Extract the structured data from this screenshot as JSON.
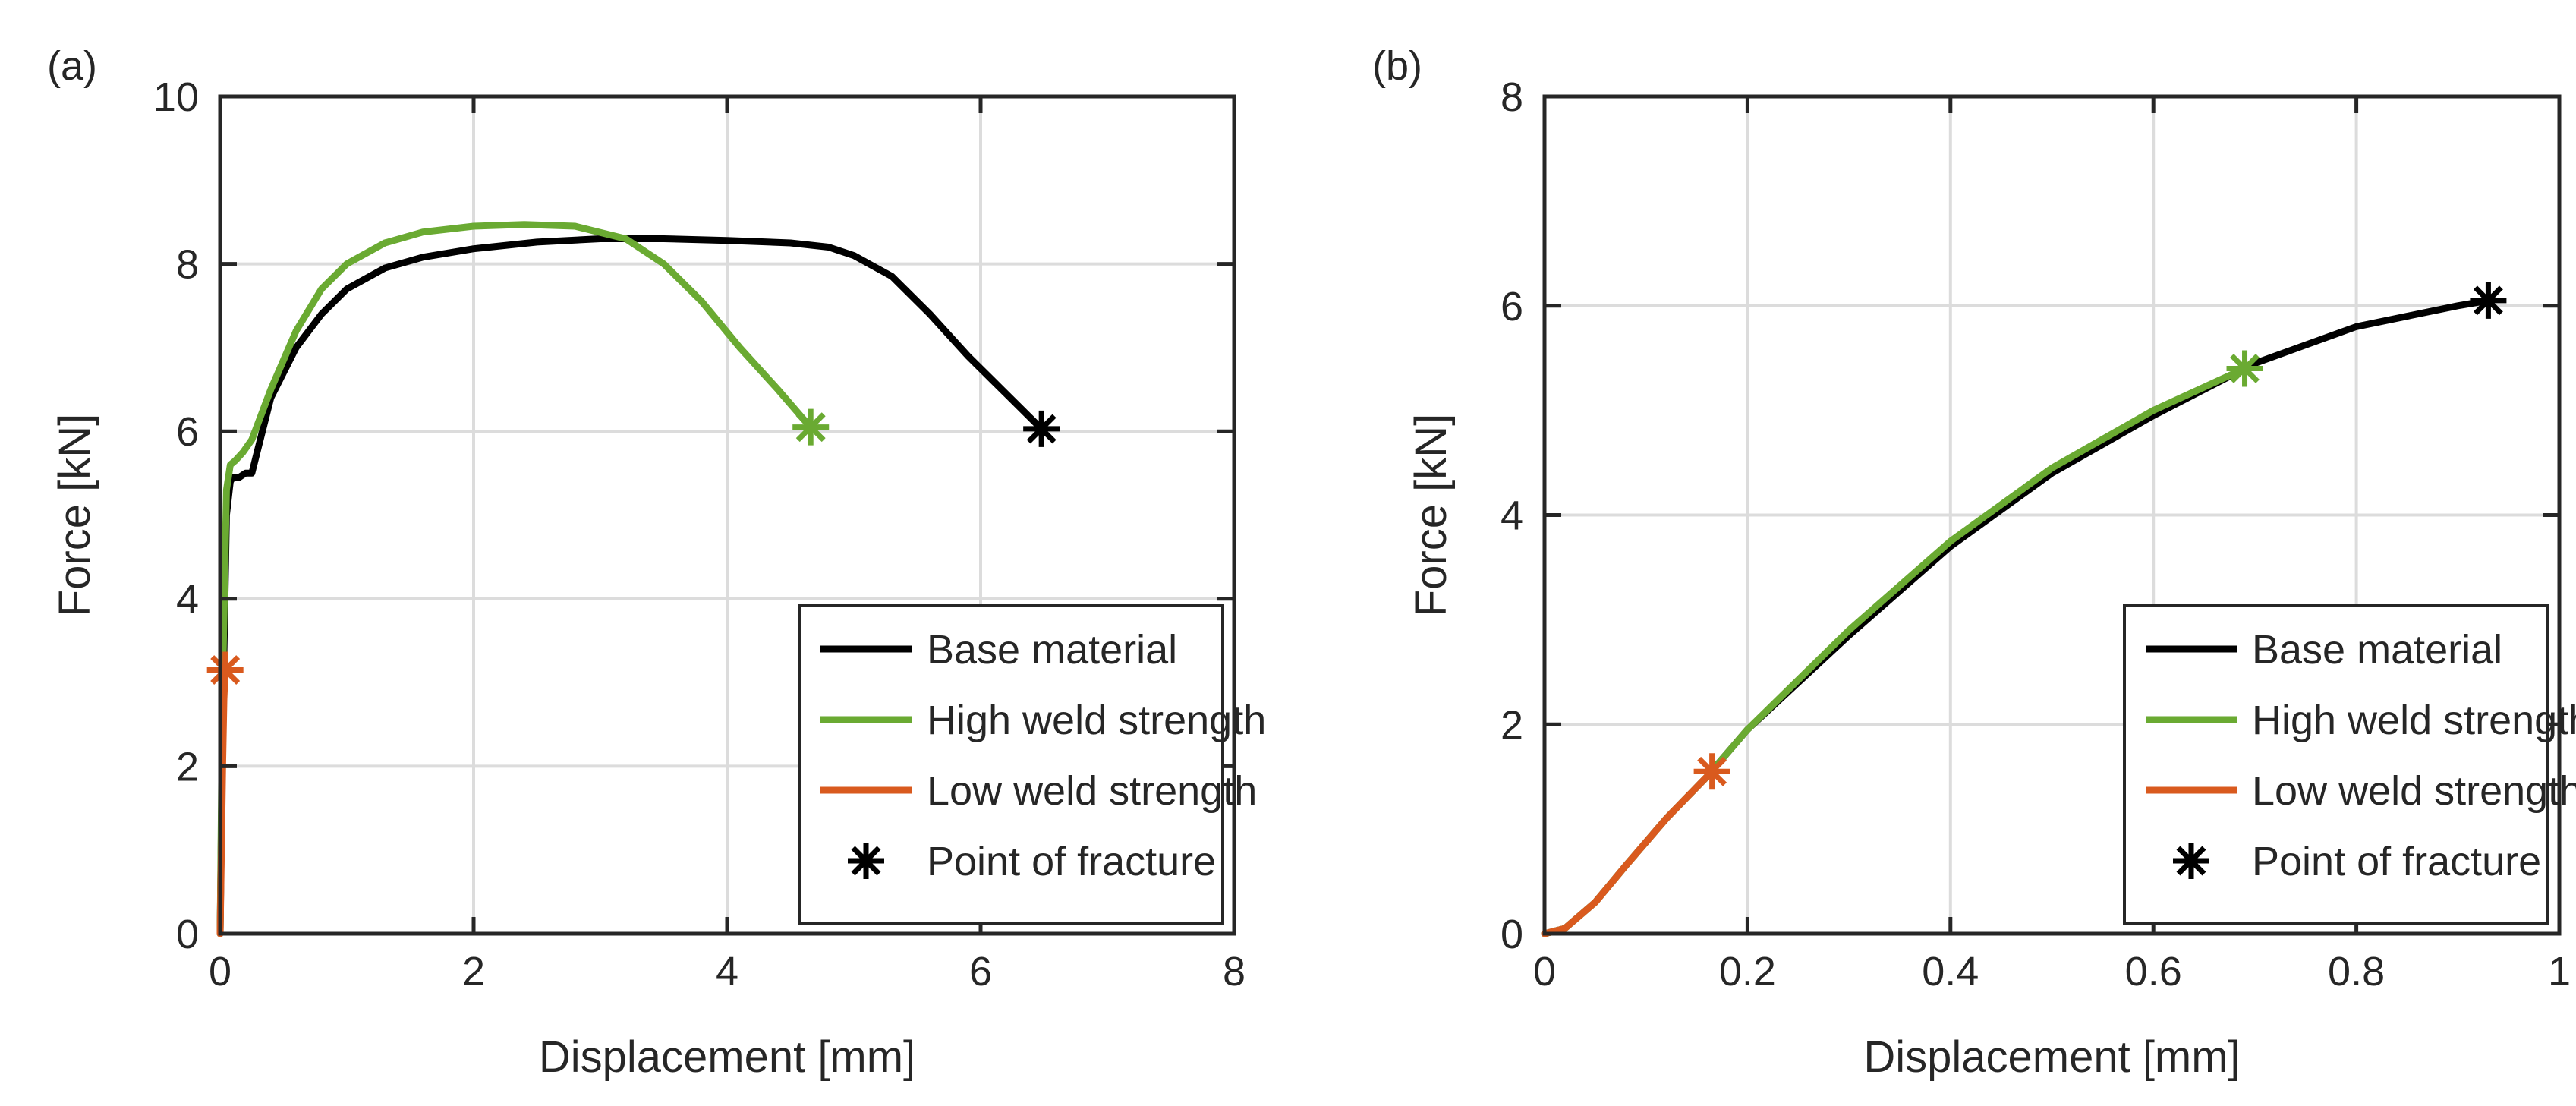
{
  "colors": {
    "base": "#000000",
    "high": "#6aaa32",
    "low": "#d95a1e",
    "grid": "#dcdcdc",
    "axis": "#262626"
  },
  "chart_data": [
    {
      "panel": "(a)",
      "type": "line",
      "xlabel": "Displacement [mm]",
      "ylabel": "Force [kN]",
      "xlim": [
        0,
        8
      ],
      "ylim": [
        0,
        10
      ],
      "xticks": [
        0,
        2,
        4,
        6,
        8
      ],
      "yticks": [
        0,
        2,
        4,
        6,
        8,
        10
      ],
      "xtick_labels": [
        "0",
        "2",
        "4",
        "6",
        "8"
      ],
      "ytick_labels": [
        "0",
        "2",
        "4",
        "6",
        "8",
        "10"
      ],
      "grid": true,
      "legend_position": "bottom-right",
      "series": [
        {
          "name": "Base material",
          "key": "base",
          "x": [
            0,
            0.02,
            0.05,
            0.08,
            0.1,
            0.15,
            0.2,
            0.25,
            0.3,
            0.4,
            0.6,
            0.8,
            1.0,
            1.3,
            1.6,
            2.0,
            2.5,
            3.0,
            3.5,
            4.0,
            4.5,
            4.8,
            5.0,
            5.3,
            5.6,
            5.9,
            6.1,
            6.3,
            6.48
          ],
          "y": [
            0,
            2.5,
            5.0,
            5.4,
            5.45,
            5.45,
            5.5,
            5.5,
            5.8,
            6.4,
            7.0,
            7.4,
            7.7,
            7.95,
            8.08,
            8.18,
            8.26,
            8.3,
            8.3,
            8.28,
            8.25,
            8.2,
            8.1,
            7.85,
            7.4,
            6.9,
            6.6,
            6.3,
            6.03
          ],
          "fracture": [
            6.48,
            6.03
          ]
        },
        {
          "name": "High weld strength",
          "key": "high",
          "x": [
            0,
            0.02,
            0.05,
            0.08,
            0.12,
            0.18,
            0.25,
            0.3,
            0.4,
            0.6,
            0.8,
            1.0,
            1.3,
            1.6,
            2.0,
            2.4,
            2.8,
            3.2,
            3.5,
            3.8,
            4.1,
            4.4,
            4.6,
            4.66
          ],
          "y": [
            0,
            3.0,
            5.3,
            5.6,
            5.65,
            5.75,
            5.9,
            6.1,
            6.5,
            7.2,
            7.7,
            8.0,
            8.25,
            8.38,
            8.45,
            8.47,
            8.45,
            8.3,
            8.0,
            7.55,
            7.0,
            6.5,
            6.15,
            6.05
          ],
          "fracture": [
            4.66,
            6.05
          ]
        },
        {
          "name": "Low weld strength",
          "key": "low",
          "x": [
            0,
            0.01,
            0.02,
            0.03,
            0.04
          ],
          "y": [
            0,
            1.0,
            2.0,
            2.8,
            3.15
          ],
          "fracture": [
            0.04,
            3.15
          ]
        }
      ]
    },
    {
      "panel": "(b)",
      "type": "line",
      "xlabel": "Displacement [mm]",
      "ylabel": "Force [kN]",
      "xlim": [
        0,
        1
      ],
      "ylim": [
        0,
        8
      ],
      "xticks": [
        0,
        0.2,
        0.4,
        0.6,
        0.8,
        1
      ],
      "yticks": [
        0,
        2,
        4,
        6,
        8
      ],
      "xtick_labels": [
        "0",
        "0.2",
        "0.4",
        "0.6",
        "0.8",
        "1"
      ],
      "ytick_labels": [
        "0",
        "2",
        "4",
        "6",
        "8"
      ],
      "grid": true,
      "legend_position": "bottom-right",
      "series": [
        {
          "name": "Base material",
          "key": "base",
          "x": [
            0,
            0.02,
            0.05,
            0.08,
            0.12,
            0.16,
            0.2,
            0.3,
            0.4,
            0.5,
            0.6,
            0.7,
            0.8,
            0.9,
            0.93
          ],
          "y": [
            0,
            0.05,
            0.3,
            0.65,
            1.1,
            1.5,
            1.95,
            2.85,
            3.7,
            4.4,
            4.95,
            5.45,
            5.8,
            6.0,
            6.05
          ],
          "fracture": [
            0.93,
            6.05
          ]
        },
        {
          "name": "High weld strength",
          "key": "high",
          "x": [
            0,
            0.02,
            0.05,
            0.08,
            0.12,
            0.16,
            0.2,
            0.3,
            0.4,
            0.5,
            0.6,
            0.69
          ],
          "y": [
            0,
            0.05,
            0.3,
            0.65,
            1.1,
            1.5,
            1.95,
            2.9,
            3.75,
            4.45,
            5.0,
            5.4
          ],
          "fracture": [
            0.69,
            5.4
          ]
        },
        {
          "name": "Low weld strength",
          "key": "low",
          "x": [
            0,
            0.02,
            0.05,
            0.08,
            0.12,
            0.165
          ],
          "y": [
            0,
            0.05,
            0.3,
            0.65,
            1.1,
            1.55
          ],
          "fracture": [
            0.165,
            1.55
          ]
        }
      ]
    }
  ],
  "legend": {
    "items": [
      {
        "label": "Base material",
        "key": "base",
        "kind": "line"
      },
      {
        "label": "High weld strength",
        "key": "high",
        "kind": "line"
      },
      {
        "label": "Low weld strength",
        "key": "low",
        "kind": "line"
      },
      {
        "label": "Point of fracture",
        "key": "base",
        "kind": "marker"
      }
    ]
  }
}
